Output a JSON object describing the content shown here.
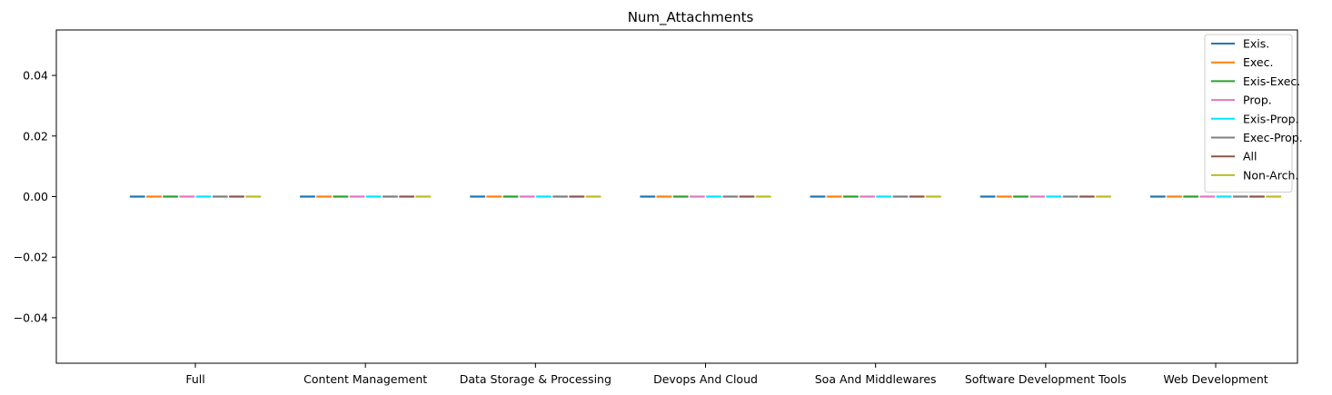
{
  "chart_data": {
    "type": "box",
    "title": "Num_Attachments",
    "xlabel": "",
    "ylabel": "",
    "categories": [
      "Full",
      "Content Management",
      "Data Storage & Processing",
      "Devops And Cloud",
      "Soa And Middlewares",
      "Software Development Tools",
      "Web Development"
    ],
    "series": [
      {
        "name": "Exis.",
        "color": "#1f77b4",
        "values": [
          0,
          0,
          0,
          0,
          0,
          0,
          0
        ]
      },
      {
        "name": "Exec.",
        "color": "#ff7f0e",
        "values": [
          0,
          0,
          0,
          0,
          0,
          0,
          0
        ]
      },
      {
        "name": "Exis-Exec.",
        "color": "#2ca02c",
        "values": [
          0,
          0,
          0,
          0,
          0,
          0,
          0
        ]
      },
      {
        "name": "Prop.",
        "color": "#e377c2",
        "values": [
          0,
          0,
          0,
          0,
          0,
          0,
          0
        ]
      },
      {
        "name": "Exis-Prop.",
        "color": "#00e5ff",
        "values": [
          0,
          0,
          0,
          0,
          0,
          0,
          0
        ]
      },
      {
        "name": "Exec-Prop.",
        "color": "#7f7f7f",
        "values": [
          0,
          0,
          0,
          0,
          0,
          0,
          0
        ]
      },
      {
        "name": "All",
        "color": "#8c564b",
        "values": [
          0,
          0,
          0,
          0,
          0,
          0,
          0
        ]
      },
      {
        "name": "Non-Arch.",
        "color": "#bcbd22",
        "values": [
          0,
          0,
          0,
          0,
          0,
          0,
          0
        ]
      }
    ],
    "ylim": [
      -0.055,
      0.055
    ],
    "yticks": [
      -0.04,
      -0.02,
      0.0,
      0.02,
      0.04
    ],
    "ytick_labels": [
      "−0.04",
      "−0.02",
      "0.00",
      "0.02",
      "0.04"
    ],
    "grid": false,
    "legend_position": "top-right"
  }
}
